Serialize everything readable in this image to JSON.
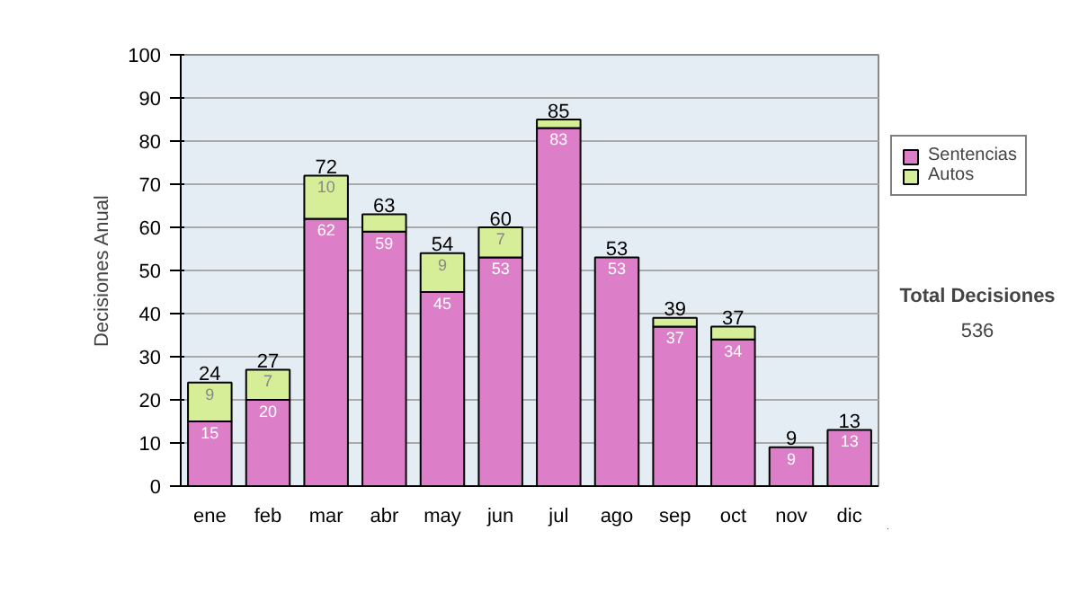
{
  "chart_data": {
    "type": "bar",
    "stacked": true,
    "ylabel": "Decisiones Anual",
    "categories": [
      "ene",
      "feb",
      "mar",
      "abr",
      "may",
      "jun",
      "jul",
      "ago",
      "sep",
      "oct",
      "nov",
      "dic"
    ],
    "series": [
      {
        "name": "Sentencias",
        "color": "#dd7fc8",
        "values": [
          15,
          20,
          62,
          59,
          45,
          53,
          83,
          53,
          37,
          34,
          9,
          13
        ],
        "value_labels": [
          "15",
          "20",
          "62",
          "59",
          "45",
          "53",
          "83",
          "53",
          "37",
          "34",
          "9",
          "13"
        ]
      },
      {
        "name": "Autos",
        "color": "#d6ee98",
        "values": [
          9,
          7,
          10,
          4,
          9,
          7,
          2,
          0,
          2,
          3,
          0,
          0
        ],
        "value_labels": [
          "9",
          "7",
          "10",
          null,
          "9",
          "7",
          null,
          null,
          null,
          null,
          null,
          null
        ]
      }
    ],
    "totals": [
      "24",
      "27",
      "72",
      "63",
      "54",
      "60",
      "85",
      "53",
      "39",
      "37",
      "9",
      "13"
    ],
    "ylim": [
      0,
      100
    ],
    "yticks": [
      0,
      10,
      20,
      30,
      40,
      50,
      60,
      70,
      80,
      90,
      100
    ],
    "grid": "y",
    "legend": "right",
    "annotations": [
      "Total Decisiones",
      "536"
    ]
  }
}
